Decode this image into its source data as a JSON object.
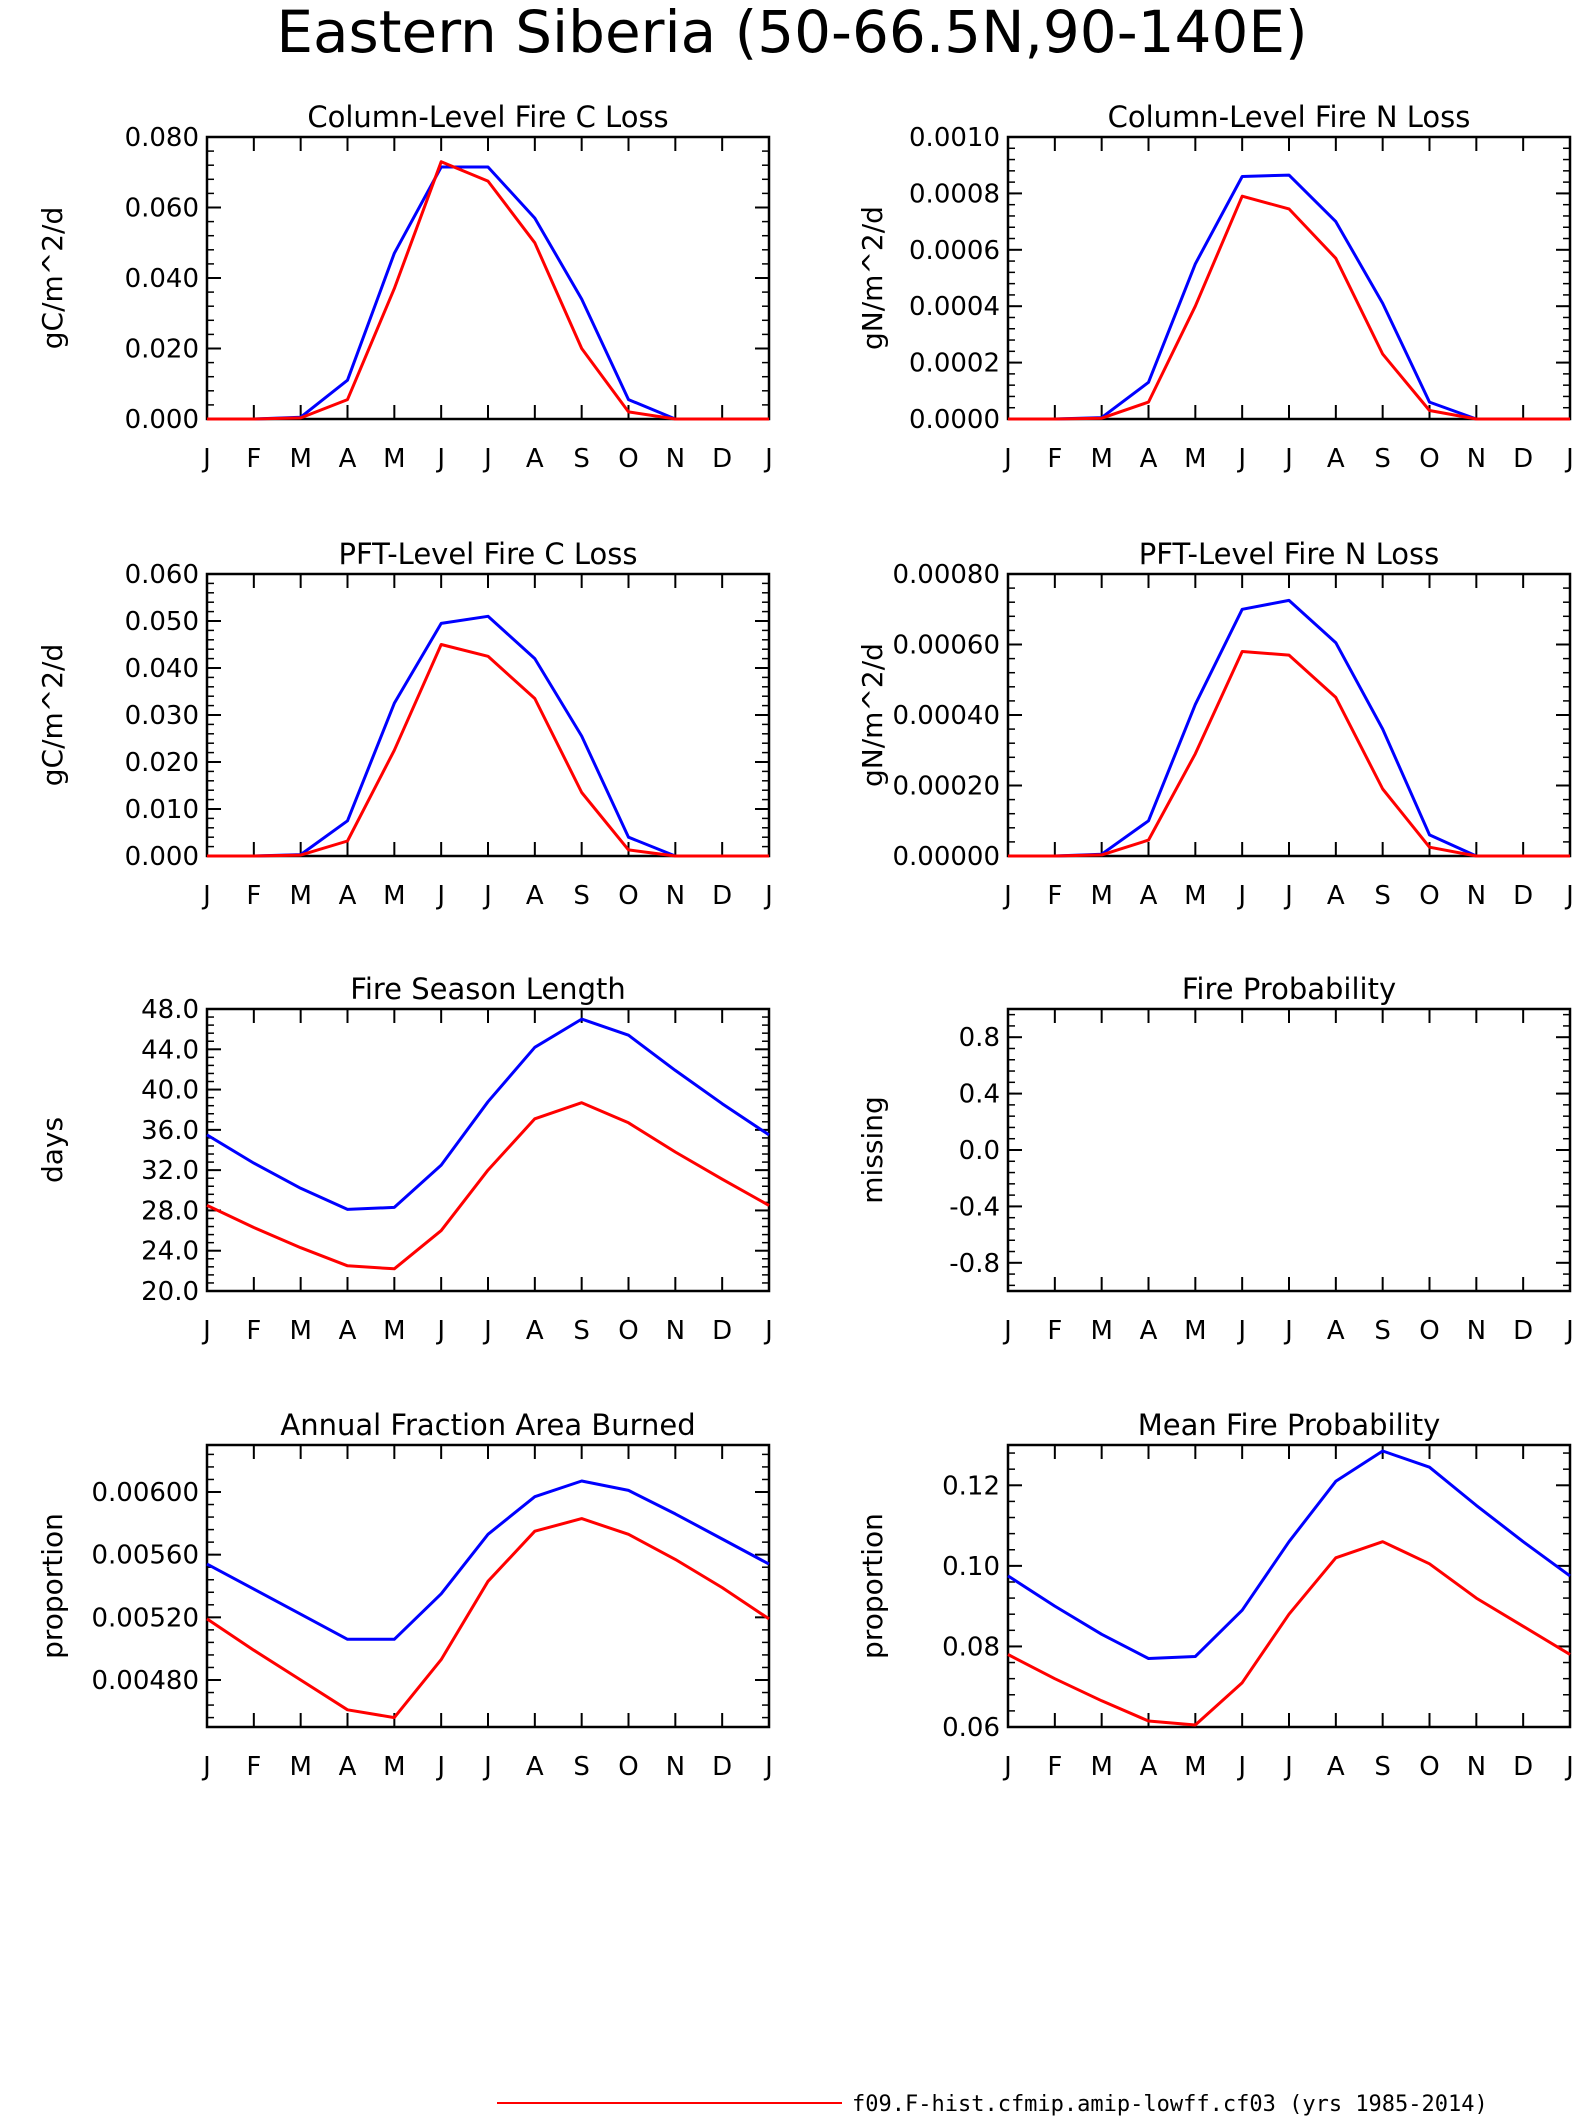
{
  "title": "Eastern Siberia (50-66.5N,90-140E)",
  "legend": {
    "label": "f09.F-hist.cfmip.amip-lowff.cf03 (yrs 1985-2014)",
    "color": "#ff0000"
  },
  "colors": {
    "red_series": "#ff0000",
    "blue_series": "#0000ff"
  },
  "chart_data": [
    {
      "type": "line",
      "title": "Column-Level Fire C Loss",
      "ylabel": "gC/m^2/d",
      "categories": [
        "J",
        "F",
        "M",
        "A",
        "M",
        "J",
        "J",
        "A",
        "S",
        "O",
        "N",
        "D",
        "J"
      ],
      "ylim": [
        0,
        0.08
      ],
      "yticks": [
        "0.000",
        "0.020",
        "0.040",
        "0.060",
        "0.080"
      ],
      "series": [
        {
          "color": "#0000ff",
          "values": [
            0,
            0,
            0.0005,
            0.011,
            0.047,
            0.0715,
            0.0715,
            0.057,
            0.034,
            0.0055,
            0,
            0,
            0
          ]
        },
        {
          "color": "#ff0000",
          "values": [
            0,
            0,
            0.0003,
            0.0055,
            0.037,
            0.073,
            0.0675,
            0.05,
            0.02,
            0.002,
            0,
            0,
            0
          ]
        }
      ]
    },
    {
      "type": "line",
      "title": "Column-Level Fire N Loss",
      "ylabel": "gN/m^2/d",
      "categories": [
        "J",
        "F",
        "M",
        "A",
        "M",
        "J",
        "J",
        "A",
        "S",
        "O",
        "N",
        "D",
        "J"
      ],
      "ylim": [
        0,
        0.001
      ],
      "yticks": [
        "0.0000",
        "0.0002",
        "0.0004",
        "0.0006",
        "0.0008",
        "0.0010"
      ],
      "series": [
        {
          "color": "#0000ff",
          "values": [
            0,
            0,
            5e-06,
            0.00013,
            0.00055,
            0.00086,
            0.000865,
            0.0007,
            0.00041,
            6e-05,
            0,
            0,
            0
          ]
        },
        {
          "color": "#ff0000",
          "values": [
            0,
            0,
            3e-06,
            6e-05,
            0.0004,
            0.00079,
            0.000745,
            0.00057,
            0.00023,
            3e-05,
            0,
            0,
            0
          ]
        }
      ]
    },
    {
      "type": "line",
      "title": "PFT-Level Fire C Loss",
      "ylabel": "gC/m^2/d",
      "categories": [
        "J",
        "F",
        "M",
        "A",
        "M",
        "J",
        "J",
        "A",
        "S",
        "O",
        "N",
        "D",
        "J"
      ],
      "ylim": [
        0,
        0.06
      ],
      "yticks": [
        "0.000",
        "0.010",
        "0.020",
        "0.030",
        "0.040",
        "0.050",
        "0.060"
      ],
      "series": [
        {
          "color": "#0000ff",
          "values": [
            0,
            0,
            0.0003,
            0.0075,
            0.0325,
            0.0495,
            0.051,
            0.042,
            0.0255,
            0.004,
            0,
            0,
            0
          ]
        },
        {
          "color": "#ff0000",
          "values": [
            0,
            0,
            0.0002,
            0.0032,
            0.0225,
            0.045,
            0.0425,
            0.0335,
            0.0135,
            0.0013,
            0,
            0,
            0
          ]
        }
      ]
    },
    {
      "type": "line",
      "title": "PFT-Level Fire N Loss",
      "ylabel": "gN/m^2/d",
      "categories": [
        "J",
        "F",
        "M",
        "A",
        "M",
        "J",
        "J",
        "A",
        "S",
        "O",
        "N",
        "D",
        "J"
      ],
      "ylim": [
        0,
        0.0008
      ],
      "yticks": [
        "0.00000",
        "0.00020",
        "0.00040",
        "0.00060",
        "0.00080"
      ],
      "series": [
        {
          "color": "#0000ff",
          "values": [
            0,
            0,
            5e-06,
            0.0001,
            0.00043,
            0.0007,
            0.000725,
            0.000605,
            0.00036,
            6e-05,
            0,
            0,
            0
          ]
        },
        {
          "color": "#ff0000",
          "values": [
            0,
            0,
            3e-06,
            4.5e-05,
            0.00029,
            0.00058,
            0.00057,
            0.00045,
            0.00019,
            2.5e-05,
            0,
            0,
            0
          ]
        }
      ]
    },
    {
      "type": "line",
      "title": "Fire Season Length",
      "ylabel": "days",
      "categories": [
        "J",
        "F",
        "M",
        "A",
        "M",
        "J",
        "J",
        "A",
        "S",
        "O",
        "N",
        "D",
        "J"
      ],
      "ylim": [
        20,
        48
      ],
      "yticks": [
        "20.0",
        "24.0",
        "28.0",
        "32.0",
        "36.0",
        "40.0",
        "44.0",
        "48.0"
      ],
      "series": [
        {
          "color": "#0000ff",
          "values": [
            35.5,
            32.7,
            30.2,
            28.1,
            28.3,
            32.5,
            38.8,
            44.2,
            47.0,
            45.4,
            41.9,
            38.6,
            35.5
          ]
        },
        {
          "color": "#ff0000",
          "values": [
            28.5,
            26.3,
            24.3,
            22.5,
            22.2,
            26.0,
            32.0,
            37.1,
            38.7,
            36.7,
            33.8,
            31.1,
            28.5
          ]
        }
      ]
    },
    {
      "type": "line",
      "title": "Fire Probability",
      "ylabel": "missing",
      "categories": [
        "J",
        "F",
        "M",
        "A",
        "M",
        "J",
        "J",
        "A",
        "S",
        "O",
        "N",
        "D",
        "J"
      ],
      "ylim": [
        -1,
        1
      ],
      "yticks": [
        "-0.8",
        "-0.4",
        "0.0",
        "0.4",
        "0.8"
      ],
      "series": []
    },
    {
      "type": "line",
      "title": "Annual Fraction Area Burned",
      "ylabel": "proportion",
      "categories": [
        "J",
        "F",
        "M",
        "A",
        "M",
        "J",
        "J",
        "A",
        "S",
        "O",
        "N",
        "D",
        "J"
      ],
      "ylim": [
        0.0045,
        0.0063
      ],
      "yticks": [
        "0.00480",
        "0.00520",
        "0.00560",
        "0.00600"
      ],
      "series": [
        {
          "color": "#0000ff",
          "values": [
            0.00554,
            0.00538,
            0.00522,
            0.00506,
            0.00506,
            0.00535,
            0.00573,
            0.00597,
            0.00607,
            0.00601,
            0.00586,
            0.0057,
            0.00554
          ]
        },
        {
          "color": "#ff0000",
          "values": [
            0.00519,
            0.00499,
            0.0048,
            0.00461,
            0.00456,
            0.00493,
            0.00543,
            0.00575,
            0.00583,
            0.00573,
            0.00557,
            0.00539,
            0.00519
          ]
        }
      ]
    },
    {
      "type": "line",
      "title": "Mean Fire Probability",
      "ylabel": "proportion",
      "categories": [
        "J",
        "F",
        "M",
        "A",
        "M",
        "J",
        "J",
        "A",
        "S",
        "O",
        "N",
        "D",
        "J"
      ],
      "ylim": [
        0.06,
        0.13
      ],
      "yticks": [
        "0.06",
        "0.08",
        "0.10",
        "0.12"
      ],
      "series": [
        {
          "color": "#0000ff",
          "values": [
            0.0975,
            0.09,
            0.083,
            0.077,
            0.0775,
            0.089,
            0.106,
            0.121,
            0.1285,
            0.1245,
            0.115,
            0.106,
            0.0975
          ]
        },
        {
          "color": "#ff0000",
          "values": [
            0.078,
            0.072,
            0.0665,
            0.0615,
            0.0605,
            0.071,
            0.088,
            0.102,
            0.106,
            0.1005,
            0.092,
            0.085,
            0.078
          ]
        }
      ]
    }
  ]
}
